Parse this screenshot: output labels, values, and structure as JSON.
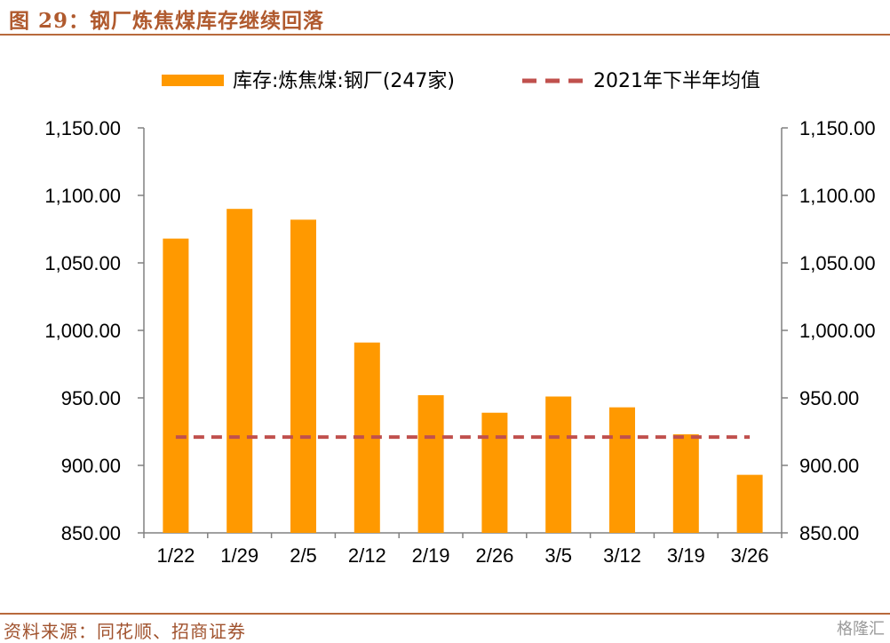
{
  "figure": {
    "title": "图 29：钢厂炼焦煤库存继续回落",
    "source": "资料来源：同花顺、招商证券",
    "watermark": "格隆汇"
  },
  "colors": {
    "bar": "#ff9900",
    "avg_line": "#c0504d",
    "axis": "#808080",
    "title": "#b05a2e",
    "rule": "#b86a3c"
  },
  "chart_data": {
    "type": "bar",
    "categories": [
      "1/22",
      "1/29",
      "2/5",
      "2/12",
      "2/19",
      "2/26",
      "3/5",
      "3/12",
      "3/19",
      "3/26"
    ],
    "series": [
      {
        "name": "库存:炼焦煤:钢厂(247家)",
        "type": "bar",
        "values": [
          1068,
          1090,
          1082,
          991,
          952,
          939,
          951,
          943,
          923,
          893
        ]
      },
      {
        "name": "2021年下半年均值",
        "type": "dashed-line",
        "values": [
          921,
          921,
          921,
          921,
          921,
          921,
          921,
          921,
          921,
          921
        ]
      }
    ],
    "ylim": [
      850,
      1150
    ],
    "yticks": [
      "1,150.00",
      "1,100.00",
      "1,050.00",
      "1,000.00",
      "950.00",
      "900.00",
      "850.00"
    ],
    "ytick_values": [
      1150,
      1100,
      1050,
      1000,
      950,
      900,
      850
    ],
    "secondary_yticks": [
      "1,150.00",
      "1,100.00",
      "1,050.00",
      "1,000.00",
      "950.00",
      "900.00",
      "850.00"
    ],
    "legend_position": "top",
    "grid": false
  }
}
